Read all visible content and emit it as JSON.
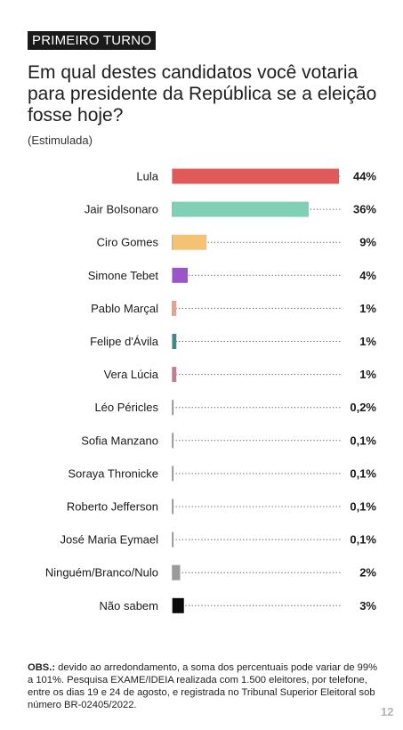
{
  "header": {
    "tag": "PRIMEIRO TURNO",
    "question": "Em qual destes candidatos você votaria para presidente da República se a eleição fosse hoje?",
    "subtitle": "(Estimulada)"
  },
  "chart_data": {
    "type": "bar",
    "orientation": "horizontal",
    "categories": [
      "Lula",
      "Jair Bolsonaro",
      "Ciro Gomes",
      "Simone Tebet",
      "Pablo Marçal",
      "Felipe d'Ávila",
      "Vera Lúcia",
      "Léo Péricles",
      "Sofia Manzano",
      "Soraya Thronicke",
      "Roberto Jefferson",
      "José Maria Eymael",
      "Ninguém/Branco/Nulo",
      "Não sabem"
    ],
    "values": [
      44,
      36,
      9,
      4,
      1,
      1,
      1,
      0.2,
      0.1,
      0.1,
      0.1,
      0.1,
      2,
      3
    ],
    "value_labels": [
      "44%",
      "36%",
      "9%",
      "4%",
      "1%",
      "1%",
      "1%",
      "0,2%",
      "0,1%",
      "0,1%",
      "0,1%",
      "0,1%",
      "2%",
      "3%"
    ],
    "colors": [
      "#e05a5a",
      "#7fd0b5",
      "#f4c274",
      "#9a55c8",
      "#e8a28a",
      "#3f8a86",
      "#c77b92",
      "#888888",
      "#888888",
      "#888888",
      "#888888",
      "#888888",
      "#9a9a9a",
      "#0a0a0a"
    ],
    "xlim": [
      0,
      44
    ],
    "grid": false,
    "legend": "none"
  },
  "footer": {
    "note_bold": "OBS.:",
    "note_text": " devido ao arredondamento, a soma dos percentuais pode variar de 99% a 101%. Pesquisa EXAME/IDEIA realizada com 1.500 eleitores, por telefone, entre os dias 19 e 24 de agosto, e registrada no Tribunal Superior Eleitoral sob número BR-02405/2022.",
    "page_number": "12"
  }
}
